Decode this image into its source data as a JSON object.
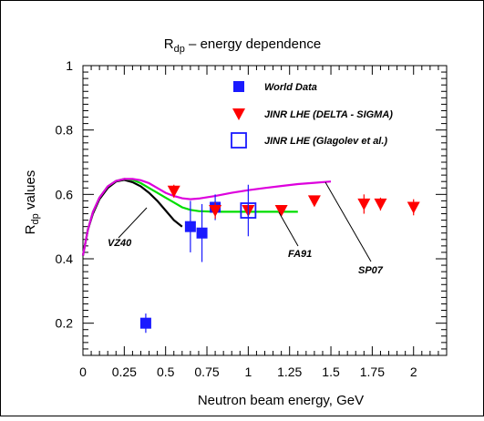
{
  "chart_data": {
    "type": "scatter",
    "title_main": "R",
    "title_sub": "dp",
    "title_rest": " – energy dependence",
    "xlabel": "Neutron beam energy, GeV",
    "ylabel_main": "R",
    "ylabel_sub": "dp",
    "ylabel_rest": "  values",
    "xlim": [
      0,
      2.2
    ],
    "ylim": [
      0.1,
      1.0
    ],
    "x_ticks": [
      {
        "v": 0,
        "label": "0"
      },
      {
        "v": 0.25,
        "label": "0.25"
      },
      {
        "v": 0.5,
        "label": "0.5"
      },
      {
        "v": 0.75,
        "label": "0.75"
      },
      {
        "v": 1,
        "label": "1"
      },
      {
        "v": 1.25,
        "label": "1.25"
      },
      {
        "v": 1.5,
        "label": "1.5"
      },
      {
        "v": 1.75,
        "label": "1.75"
      },
      {
        "v": 2,
        "label": "2"
      }
    ],
    "y_ticks": [
      {
        "v": 0.2,
        "label": "0.2"
      },
      {
        "v": 0.4,
        "label": "0.4"
      },
      {
        "v": 0.6,
        "label": "0.6"
      },
      {
        "v": 0.8,
        "label": "0.8"
      },
      {
        "v": 1.0,
        "label": "1"
      }
    ],
    "legend": [
      {
        "label": "World Data",
        "marker": "filled-square",
        "color": "#1a1aff"
      },
      {
        "label": "JINR LHE (DELTA - SIGMA)",
        "marker": "triangle-down",
        "color": "#ff0000"
      },
      {
        "label": "JINR LHE (Glagolev et al.)",
        "marker": "open-square",
        "color": "#1a1aff"
      }
    ],
    "series": [
      {
        "name": "World Data",
        "marker": "filled-square",
        "color": "#1a1aff",
        "points": [
          {
            "x": 0.38,
            "y": 0.2,
            "err": 0.03
          },
          {
            "x": 0.65,
            "y": 0.5,
            "err": 0.08
          },
          {
            "x": 0.72,
            "y": 0.48,
            "err": 0.09
          },
          {
            "x": 0.8,
            "y": 0.56,
            "err": 0.04
          }
        ]
      },
      {
        "name": "JINR LHE (DELTA - SIGMA)",
        "marker": "triangle-down",
        "color": "#ff0000",
        "points": [
          {
            "x": 0.55,
            "y": 0.61,
            "err": 0.02
          },
          {
            "x": 0.8,
            "y": 0.55,
            "err": 0.025
          },
          {
            "x": 1.0,
            "y": 0.55,
            "err": 0.02
          },
          {
            "x": 1.2,
            "y": 0.55,
            "err": 0.015
          },
          {
            "x": 1.4,
            "y": 0.58,
            "err": 0.015
          },
          {
            "x": 1.7,
            "y": 0.57,
            "err": 0.03
          },
          {
            "x": 1.8,
            "y": 0.57,
            "err": 0.02
          },
          {
            "x": 2.0,
            "y": 0.56,
            "err": 0.025
          }
        ]
      },
      {
        "name": "JINR LHE (Glagolev et al.)",
        "marker": "open-square",
        "color": "#1a1aff",
        "points": [
          {
            "x": 1.0,
            "y": 0.55,
            "err": 0.08
          }
        ]
      }
    ],
    "curves": [
      {
        "label": "VZ40",
        "color": "#000000",
        "points": [
          [
            0.0,
            0.41
          ],
          [
            0.03,
            0.49
          ],
          [
            0.06,
            0.54
          ],
          [
            0.1,
            0.585
          ],
          [
            0.15,
            0.62
          ],
          [
            0.2,
            0.64
          ],
          [
            0.25,
            0.645
          ],
          [
            0.3,
            0.638
          ],
          [
            0.35,
            0.625
          ],
          [
            0.4,
            0.605
          ],
          [
            0.45,
            0.58
          ],
          [
            0.5,
            0.55
          ],
          [
            0.55,
            0.52
          ],
          [
            0.6,
            0.5
          ]
        ]
      },
      {
        "label": "FA91",
        "color": "#00dd00",
        "points": [
          [
            0.0,
            0.41
          ],
          [
            0.03,
            0.49
          ],
          [
            0.06,
            0.545
          ],
          [
            0.1,
            0.59
          ],
          [
            0.15,
            0.625
          ],
          [
            0.2,
            0.642
          ],
          [
            0.25,
            0.648
          ],
          [
            0.3,
            0.645
          ],
          [
            0.35,
            0.635
          ],
          [
            0.4,
            0.62
          ],
          [
            0.45,
            0.605
          ],
          [
            0.5,
            0.59
          ],
          [
            0.55,
            0.575
          ],
          [
            0.6,
            0.56
          ],
          [
            0.65,
            0.552
          ],
          [
            0.7,
            0.548
          ],
          [
            0.8,
            0.546
          ],
          [
            0.9,
            0.546
          ],
          [
            1.0,
            0.546
          ],
          [
            1.1,
            0.546
          ],
          [
            1.2,
            0.546
          ],
          [
            1.3,
            0.546
          ]
        ]
      },
      {
        "label": "SP07",
        "color": "#dd00dd",
        "points": [
          [
            0.0,
            0.41
          ],
          [
            0.03,
            0.49
          ],
          [
            0.06,
            0.545
          ],
          [
            0.1,
            0.59
          ],
          [
            0.15,
            0.625
          ],
          [
            0.2,
            0.642
          ],
          [
            0.25,
            0.648
          ],
          [
            0.3,
            0.648
          ],
          [
            0.35,
            0.644
          ],
          [
            0.4,
            0.635
          ],
          [
            0.45,
            0.62
          ],
          [
            0.5,
            0.605
          ],
          [
            0.55,
            0.595
          ],
          [
            0.6,
            0.588
          ],
          [
            0.65,
            0.585
          ],
          [
            0.7,
            0.587
          ],
          [
            0.8,
            0.595
          ],
          [
            0.9,
            0.605
          ],
          [
            1.0,
            0.613
          ],
          [
            1.1,
            0.62
          ],
          [
            1.2,
            0.626
          ],
          [
            1.3,
            0.632
          ],
          [
            1.4,
            0.636
          ],
          [
            1.5,
            0.64
          ]
        ]
      }
    ]
  }
}
